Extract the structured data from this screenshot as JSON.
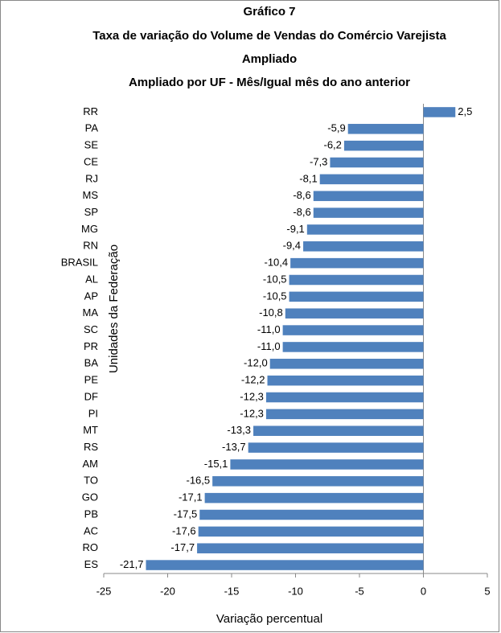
{
  "chart_data": {
    "type": "bar",
    "orientation": "horizontal",
    "title": [
      "Gráfico 7",
      "Taxa de variação do Volume de Vendas do Comércio Varejista",
      "Ampliado",
      "Ampliado por UF - Mês/Igual mês do ano anterior"
    ],
    "x_label": "Variação percentual",
    "y_label": "Unidades da Federação",
    "categories": [
      "RR",
      "PA",
      "SE",
      "CE",
      "RJ",
      "MS",
      "SP",
      "MG",
      "RN",
      "BRASIL",
      "AL",
      "AP",
      "MA",
      "SC",
      "PR",
      "BA",
      "PE",
      "DF",
      "PI",
      "MT",
      "RS",
      "AM",
      "TO",
      "GO",
      "PB",
      "AC",
      "RO",
      "ES"
    ],
    "values": [
      2.5,
      -5.9,
      -6.2,
      -7.3,
      -8.1,
      -8.6,
      -8.6,
      -9.1,
      -9.4,
      -10.4,
      -10.5,
      -10.5,
      -10.8,
      -11.0,
      -11.0,
      -12.0,
      -12.2,
      -12.3,
      -12.3,
      -13.3,
      -13.7,
      -15.1,
      -16.5,
      -17.1,
      -17.5,
      -17.6,
      -17.7,
      -21.7
    ],
    "value_labels": [
      "2,5",
      "-5,9",
      "-6,2",
      "-7,3",
      "-8,1",
      "-8,6",
      "-8,6",
      "-9,1",
      "-9,4",
      "-10,4",
      "-10,5",
      "-10,5",
      "-10,8",
      "-11,0",
      "-11,0",
      "-12,0",
      "-12,2",
      "-12,3",
      "-12,3",
      "-13,3",
      "-13,7",
      "-15,1",
      "-16,5",
      "-17,1",
      "-17,5",
      "-17,6",
      "-17,7",
      "-21,7"
    ],
    "color": "#4f81bd",
    "xlim": [
      -25,
      5
    ],
    "xticks": [
      -25,
      -20,
      -15,
      -10,
      -5,
      0,
      5
    ],
    "grid": false
  }
}
